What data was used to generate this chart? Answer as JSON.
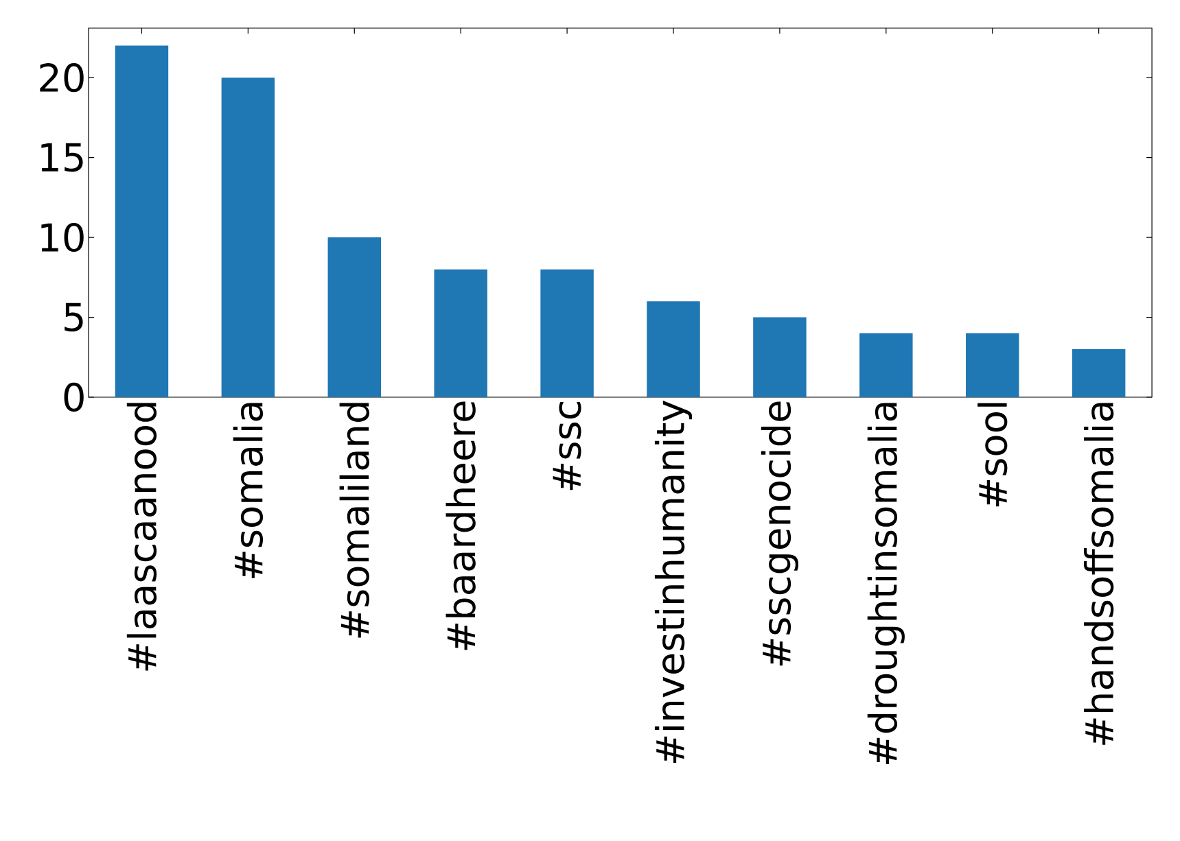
{
  "chart_data": {
    "type": "bar",
    "categories": [
      "#laascaanood",
      "#somalia",
      "#somaliland",
      "#baardheere",
      "#ssc",
      "#investinhumanity",
      "#sscgenocide",
      "#droughtinsomalia",
      "#sool",
      "#handsoffsomalia"
    ],
    "values": [
      22,
      20,
      10,
      8,
      8,
      6,
      5,
      4,
      4,
      3
    ],
    "color": "#1f77b4",
    "ylim": [
      0,
      23.1
    ],
    "yticks": [
      0,
      5,
      10,
      15,
      20
    ]
  }
}
